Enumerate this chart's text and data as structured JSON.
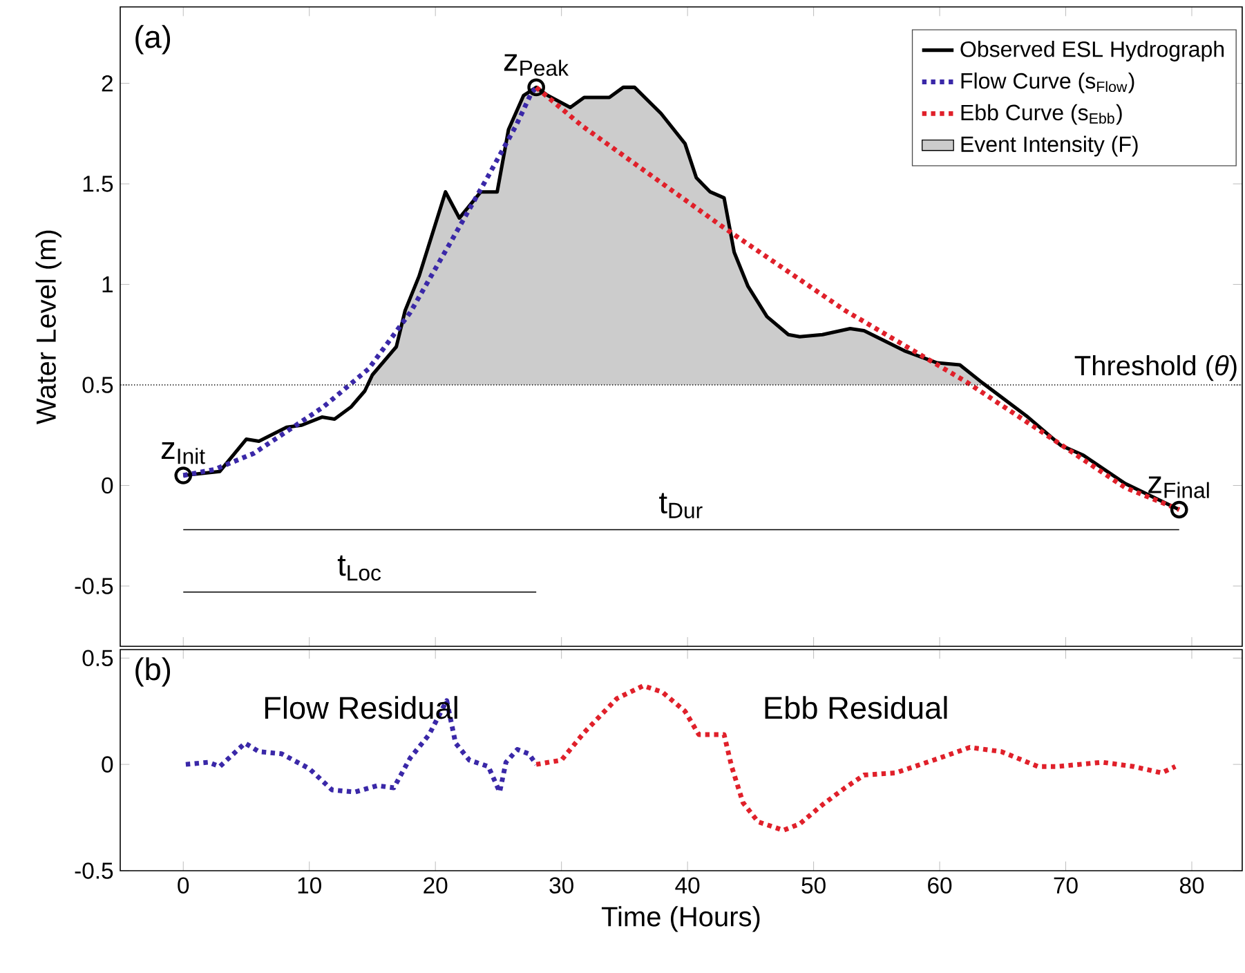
{
  "chart_data": [
    {
      "type": "line",
      "xlim": [
        -5,
        84
      ],
      "ylim": [
        -0.8,
        2.38
      ],
      "xticks": [
        0,
        10,
        20,
        30,
        40,
        50,
        60,
        70,
        80
      ],
      "yticks": [
        -0.5,
        0,
        0.5,
        1,
        1.5,
        2
      ],
      "tick_labels": "y",
      "ylabel": "Water Level (m)",
      "legend": "top right",
      "grid": false,
      "annotations": [
        "(a)",
        {
          "text": "z$_{Init}$",
          "x": 0,
          "y": 0.05
        },
        {
          "text": "z$_{Peak}$",
          "x": 28,
          "y": 1.98
        },
        {
          "text": "z$_{Final}$",
          "x": 79,
          "y": -0.12
        },
        {
          "text": "t$_{Dur}$",
          "x": 39.5,
          "y": -0.22
        },
        {
          "text": "t$_{Loc}$",
          "x": 14,
          "y": -0.53
        }
      ],
      "ref_lines": [
        {
          "axis": "y",
          "value": 0.5,
          "label": "Threshold (*θ*)",
          "color": "#000000",
          "line_style": "dotted"
        }
      ],
      "series": [
        {
          "name": "Observed ESL Hydrograph",
          "type": "line",
          "color": "#000000",
          "line_style": "solid",
          "x": [
            0,
            2.9,
            5.0,
            6.0,
            8.2,
            9.4,
            11.0,
            12.0,
            13.3,
            14.4,
            15.0,
            16.9,
            17.6,
            18.7,
            19.8,
            20.8,
            21.9,
            23.6,
            24.9,
            25.8,
            27.0,
            28,
            28.9,
            30.7,
            31.8,
            33.8,
            34.9,
            35.8,
            37.9,
            39.8,
            40.7,
            41.8,
            42.9,
            43.7,
            44.8,
            46.3,
            48.0,
            48.9,
            50.7,
            52.9,
            54.0,
            57.2,
            59.8,
            61.6,
            63.4,
            67.0,
            69.6,
            71.4,
            74.7,
            79
          ],
          "values": [
            0.05,
            0.07,
            0.23,
            0.22,
            0.29,
            0.3,
            0.34,
            0.33,
            0.39,
            0.47,
            0.55,
            0.69,
            0.87,
            1.04,
            1.26,
            1.46,
            1.33,
            1.46,
            1.46,
            1.77,
            1.94,
            1.98,
            1.94,
            1.88,
            1.93,
            1.93,
            1.98,
            1.98,
            1.85,
            1.7,
            1.53,
            1.46,
            1.43,
            1.16,
            0.99,
            0.84,
            0.75,
            0.74,
            0.75,
            0.78,
            0.77,
            0.67,
            0.61,
            0.6,
            0.51,
            0.34,
            0.2,
            0.15,
            0.01,
            -0.12
          ]
        },
        {
          "name": "Flow Curve (s$_{Flow}$)",
          "type": "line",
          "color": "#3a28a8",
          "line_style": "dotted",
          "x": [
            0,
            2.5,
            5.6,
            8,
            11.1,
            14.7,
            18.0,
            21.3,
            24.2,
            26.4,
            27.6,
            28
          ],
          "values": [
            0.05,
            0.08,
            0.16,
            0.26,
            0.39,
            0.58,
            0.86,
            1.22,
            1.54,
            1.79,
            1.95,
            1.98
          ]
        },
        {
          "name": "Ebb Curve (s$_{Ebb}$)",
          "type": "line",
          "color": "#e0202a",
          "line_style": "dotted",
          "x": [
            28,
            31.6,
            42.7,
            52.5,
            62,
            68.5,
            74.7,
            79
          ],
          "values": [
            1.98,
            1.79,
            1.29,
            0.87,
            0.52,
            0.25,
            -0.01,
            -0.12
          ]
        },
        {
          "name": "Event Intensity (F)",
          "type": "area",
          "color": "#cccccc",
          "x": [
            14.6,
            15.0,
            16.9,
            17.6,
            18.7,
            19.8,
            20.8,
            21.9,
            23.6,
            24.9,
            25.8,
            27.0,
            28,
            28.9,
            30.7,
            31.8,
            33.8,
            34.9,
            35.8,
            37.9,
            39.8,
            40.7,
            41.8,
            42.9,
            43.7,
            44.8,
            46.3,
            48.0,
            48.9,
            50.7,
            52.9,
            54.0,
            57.2,
            59.8,
            61.6,
            63.5
          ],
          "values": [
            0.5,
            0.55,
            0.69,
            0.87,
            1.04,
            1.26,
            1.46,
            1.33,
            1.46,
            1.46,
            1.77,
            1.94,
            1.98,
            1.94,
            1.88,
            1.93,
            1.93,
            1.98,
            1.98,
            1.85,
            1.7,
            1.53,
            1.46,
            1.43,
            1.16,
            0.99,
            0.84,
            0.75,
            0.74,
            0.75,
            0.78,
            0.77,
            0.67,
            0.61,
            0.6,
            0.5
          ]
        },
        {
          "type": "scatter",
          "marker": "circle",
          "color": "#000000",
          "x": [
            0,
            28,
            79
          ],
          "values": [
            0.05,
            1.98,
            -0.12
          ]
        },
        {
          "type": "line",
          "color": "#000000",
          "line_style": "solid",
          "x": [
            0,
            79
          ],
          "values": [
            -0.22,
            -0.22
          ]
        },
        {
          "type": "line",
          "color": "#000000",
          "line_style": "solid",
          "x": [
            0,
            28
          ],
          "values": [
            -0.53,
            -0.53
          ]
        }
      ]
    },
    {
      "type": "line",
      "xlim": [
        -5,
        84
      ],
      "ylim": [
        -0.5,
        0.54
      ],
      "xticks": [
        0,
        10,
        20,
        30,
        40,
        50,
        60,
        70,
        80
      ],
      "yticks": [
        -0.5,
        0,
        0.5
      ],
      "xlabel": "Time (Hours)",
      "line_style": "dotted",
      "grid": false,
      "annotations": [
        "(b)"
      ],
      "series": [
        {
          "name": "Flow Residual",
          "color": "#3a28a8",
          "x": [
            0.2,
            2,
            2.9,
            4.9,
            6,
            7.8,
            10,
            11.8,
            13.6,
            15.4,
            16.7,
            18,
            19.5,
            20.9,
            21.6,
            22.7,
            24.2,
            25.1,
            25.6,
            26.5,
            27.4,
            28
          ],
          "values": [
            0.0,
            0.01,
            -0.01,
            0.1,
            0.06,
            0.05,
            -0.02,
            -0.12,
            -0.13,
            -0.1,
            -0.11,
            0.03,
            0.14,
            0.3,
            0.1,
            0.02,
            -0.01,
            -0.13,
            0.01,
            0.07,
            0.05,
            0.0
          ]
        },
        {
          "name": "Ebb Residual",
          "color": "#e0202a",
          "x": [
            28,
            30,
            31.8,
            34.4,
            36.5,
            38,
            39.8,
            40.9,
            42.9,
            43.5,
            44.4,
            45.6,
            47.6,
            48.9,
            50.7,
            52.5,
            54,
            56.5,
            60,
            62.4,
            64.9,
            67.8,
            69.3,
            72.9,
            75.4,
            77.6,
            78.7
          ],
          "values": [
            0.0,
            0.02,
            0.15,
            0.31,
            0.37,
            0.34,
            0.25,
            0.14,
            0.14,
            -0.01,
            -0.18,
            -0.27,
            -0.31,
            -0.28,
            -0.19,
            -0.11,
            -0.05,
            -0.04,
            0.03,
            0.08,
            0.06,
            -0.01,
            -0.01,
            0.01,
            -0.01,
            -0.04,
            -0.01
          ]
        }
      ]
    }
  ]
}
